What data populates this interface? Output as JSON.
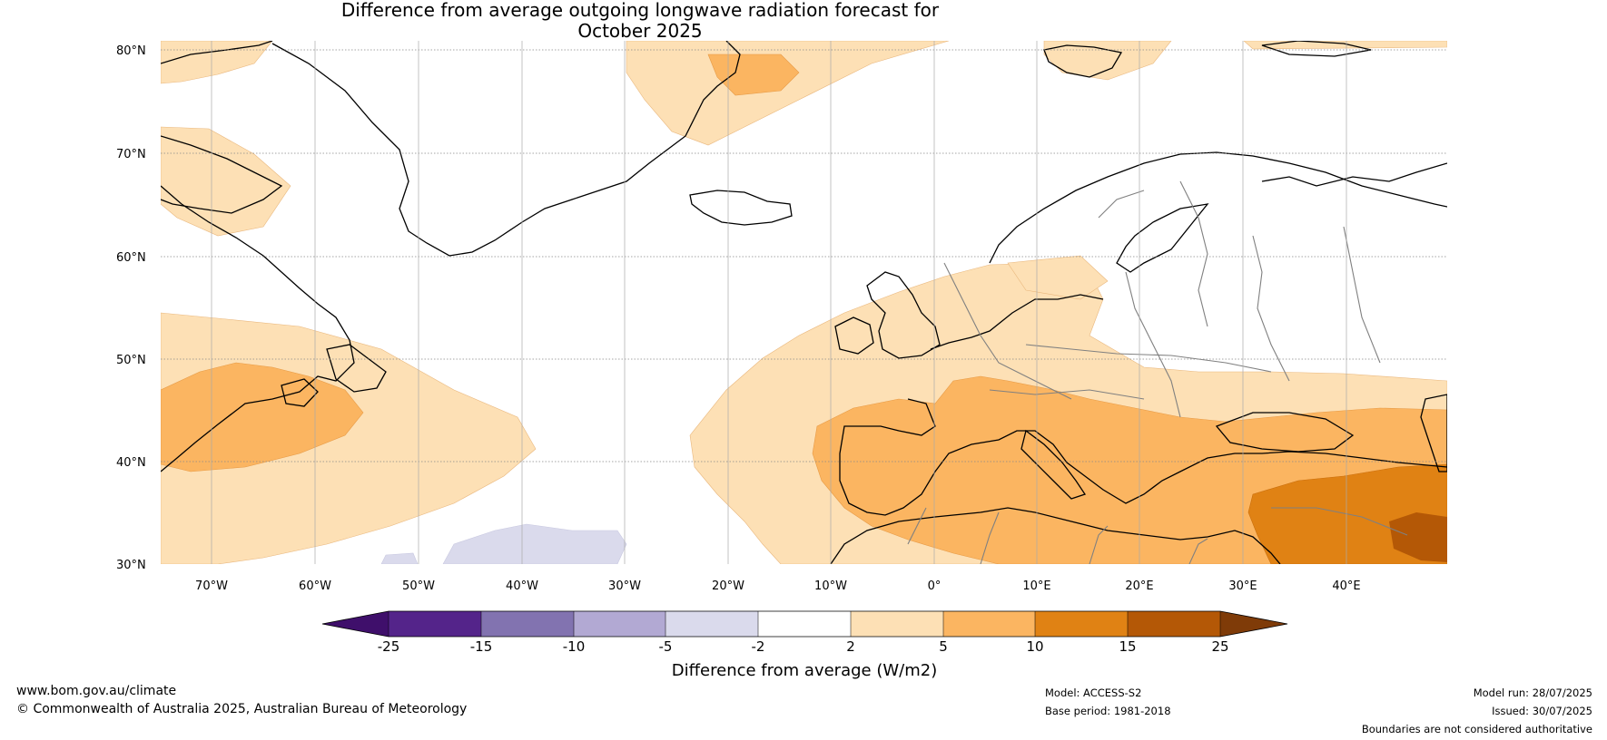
{
  "title_line1": "Difference from average outgoing longwave radiation forecast for",
  "title_line2": "October 2025",
  "latitudes": [
    "80°N",
    "70°N",
    "60°N",
    "50°N",
    "40°N",
    "30°N"
  ],
  "longitudes": [
    "70°W",
    "60°W",
    "50°W",
    "40°W",
    "30°W",
    "20°W",
    "10°W",
    "0°",
    "10°E",
    "20°E",
    "30°E",
    "40°E"
  ],
  "colorbar": {
    "title": "Difference from average (W/m2)",
    "boundaries": [
      "-25",
      "-15",
      "-10",
      "-5",
      "-2",
      "2",
      "5",
      "10",
      "15",
      "25"
    ],
    "colors": [
      "#3f0f6b",
      "#54248a",
      "#8273b0",
      "#b2a9d3",
      "#dadaec",
      "#ffffff",
      "#fde0b5",
      "#fbb561",
      "#e08214",
      "#b45806",
      "#7f3b08"
    ]
  },
  "footer": {
    "website": "www.bom.gov.au/climate",
    "copyright": "© Commonwealth of Australia 2025, Australian Bureau of Meteorology",
    "model": "Model: ACCESS-S2",
    "base_period": "Base period: 1981-2018",
    "model_run": "Model run: 28/07/2025",
    "issued": "Issued: 30/07/2025",
    "disclaimer": "Boundaries are not considered authoritative"
  }
}
